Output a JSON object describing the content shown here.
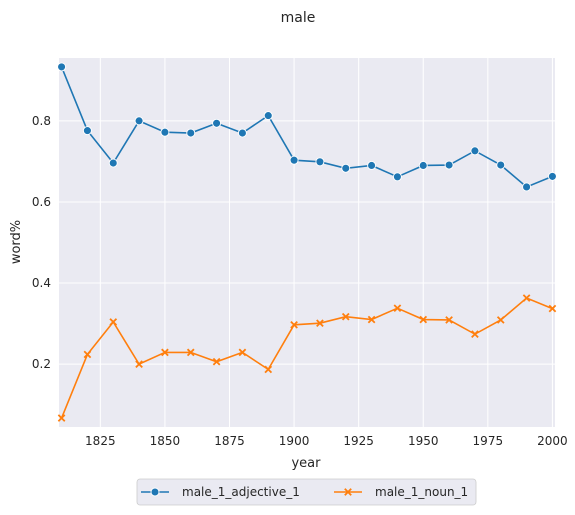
{
  "chart_data": {
    "type": "line",
    "title": "male",
    "xlabel": "year",
    "ylabel": "word%",
    "xlim": [
      1809,
      2001
    ],
    "ylim": [
      0.045,
      0.955
    ],
    "xticks": [
      1825,
      1850,
      1875,
      1900,
      1925,
      1950,
      1975,
      2000
    ],
    "yticks": [
      0.2,
      0.4,
      0.6,
      0.8
    ],
    "grid": true,
    "legend_position": "bottom-center",
    "x": [
      1810,
      1820,
      1830,
      1840,
      1850,
      1860,
      1870,
      1880,
      1890,
      1900,
      1910,
      1920,
      1930,
      1940,
      1950,
      1960,
      1970,
      1980,
      1990,
      2000
    ],
    "series": [
      {
        "name": "male_1_adjective_1",
        "color": "#1f77b4",
        "marker": "circle",
        "values": [
          0.933,
          0.776,
          0.696,
          0.8,
          0.772,
          0.77,
          0.794,
          0.77,
          0.813,
          0.703,
          0.699,
          0.683,
          0.69,
          0.662,
          0.69,
          0.691,
          0.726,
          0.691,
          0.637,
          0.663
        ]
      },
      {
        "name": "male_1_noun_1",
        "color": "#ff7f0e",
        "marker": "x",
        "values": [
          0.067,
          0.224,
          0.304,
          0.2,
          0.229,
          0.229,
          0.206,
          0.229,
          0.187,
          0.297,
          0.301,
          0.317,
          0.31,
          0.338,
          0.31,
          0.309,
          0.274,
          0.309,
          0.363,
          0.337
        ]
      }
    ]
  }
}
